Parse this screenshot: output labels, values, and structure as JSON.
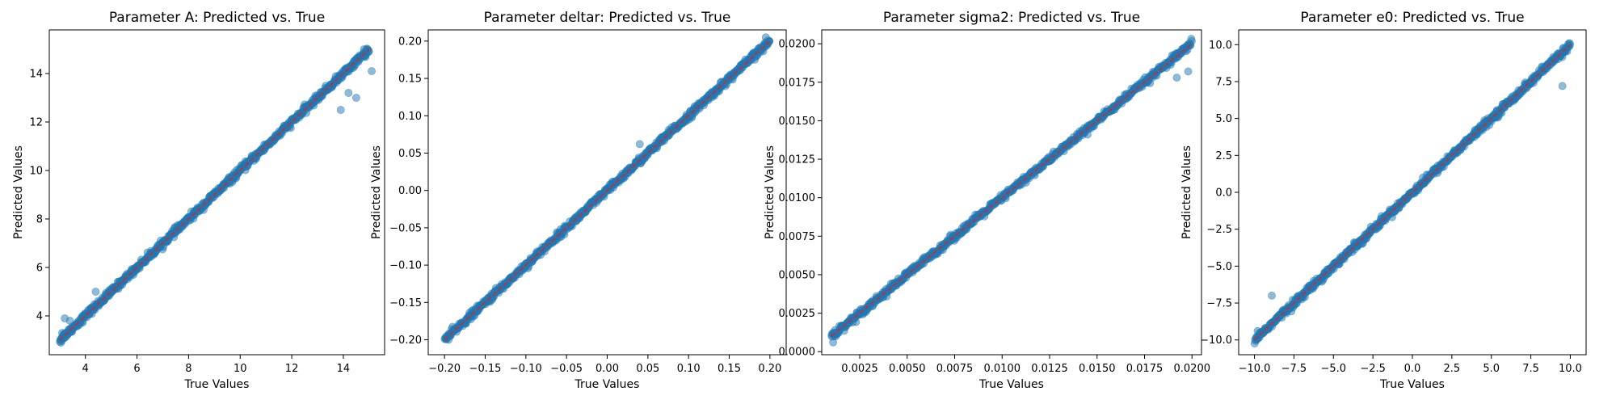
{
  "style": {
    "point_color": "#1f77b4",
    "line_color": "#d62728"
  },
  "chart_data": [
    {
      "type": "scatter",
      "title": "Parameter A: Predicted vs. True",
      "xlabel": "True Values",
      "ylabel": "Predicted Values",
      "xlim": [
        2.6,
        15.6
      ],
      "ylim": [
        2.4,
        15.8
      ],
      "xticks": [
        4,
        6,
        8,
        10,
        12,
        14
      ],
      "xtick_labels": [
        "4",
        "6",
        "8",
        "10",
        "12",
        "14"
      ],
      "yticks": [
        4,
        6,
        8,
        10,
        12,
        14
      ],
      "ytick_labels": [
        "4",
        "6",
        "8",
        "10",
        "12",
        "14"
      ],
      "range": [
        3,
        15
      ],
      "ideal_line": [
        [
          3,
          3
        ],
        [
          15,
          15
        ]
      ],
      "outliers": [
        [
          13.9,
          12.5
        ],
        [
          14.5,
          13.0
        ],
        [
          15.1,
          14.1
        ],
        [
          14.2,
          13.2
        ],
        [
          3.05,
          2.9
        ],
        [
          3.2,
          3.9
        ],
        [
          3.4,
          3.8
        ],
        [
          4.4,
          5.0
        ],
        [
          3.1,
          3.3
        ],
        [
          14.8,
          15.0
        ]
      ],
      "grid": false,
      "legend": "none"
    },
    {
      "type": "scatter",
      "title": "Parameter deltar: Predicted vs. True",
      "xlabel": "True Values",
      "ylabel": "Predicted Values",
      "xlim": [
        -0.22,
        0.22
      ],
      "ylim": [
        -0.22,
        0.215
      ],
      "xticks": [
        -0.2,
        -0.15,
        -0.1,
        -0.05,
        0.0,
        0.05,
        0.1,
        0.15,
        0.2
      ],
      "xtick_labels": [
        "−0.20",
        "−0.15",
        "−0.10",
        "−0.05",
        "0.00",
        "0.05",
        "0.10",
        "0.15",
        "0.20"
      ],
      "yticks": [
        -0.2,
        -0.15,
        -0.1,
        -0.05,
        0.0,
        0.05,
        0.1,
        0.15,
        0.2
      ],
      "ytick_labels": [
        "−0.20",
        "−0.15",
        "−0.10",
        "−0.05",
        "0.00",
        "0.05",
        "0.10",
        "0.15",
        "0.20"
      ],
      "range": [
        -0.2,
        0.2
      ],
      "ideal_line": [
        [
          -0.2,
          -0.2
        ],
        [
          0.2,
          0.2
        ]
      ],
      "outliers": [
        [
          0.04,
          0.062
        ],
        [
          0.195,
          0.205
        ],
        [
          -0.195,
          -0.2
        ]
      ],
      "grid": false,
      "legend": "none"
    },
    {
      "type": "scatter",
      "title": "Parameter sigma2: Predicted vs. True",
      "xlabel": "True Values",
      "ylabel": "Predicted Values",
      "xlim": [
        0.0005,
        0.0205
      ],
      "ylim": [
        -0.0002,
        0.0209
      ],
      "xticks": [
        0.0025,
        0.005,
        0.0075,
        0.01,
        0.0125,
        0.015,
        0.0175,
        0.02
      ],
      "xtick_labels": [
        "0.0025",
        "0.0050",
        "0.0075",
        "0.0100",
        "0.0125",
        "0.0150",
        "0.0175",
        "0.0200"
      ],
      "yticks": [
        0.0,
        0.0025,
        0.005,
        0.0075,
        0.01,
        0.0125,
        0.015,
        0.0175,
        0.02
      ],
      "ytick_labels": [
        "0.0000",
        "0.0025",
        "0.0050",
        "0.0075",
        "0.0100",
        "0.0125",
        "0.0150",
        "0.0175",
        "0.0200"
      ],
      "range": [
        0.001,
        0.02
      ],
      "ideal_line": [
        [
          0.001,
          0.001
        ],
        [
          0.02,
          0.02
        ]
      ],
      "outliers": [
        [
          0.0011,
          0.0006
        ],
        [
          0.0198,
          0.0182
        ],
        [
          0.0192,
          0.0178
        ],
        [
          0.0145,
          0.0141
        ],
        [
          0.0012,
          0.0014
        ]
      ],
      "grid": false,
      "legend": "none"
    },
    {
      "type": "scatter",
      "title": "Parameter e0: Predicted vs. True",
      "xlabel": "True Values",
      "ylabel": "Predicted Values",
      "xlim": [
        -11.0,
        11.0
      ],
      "ylim": [
        -11.0,
        11.0
      ],
      "xticks": [
        -10,
        -7.5,
        -5,
        -2.5,
        0,
        2.5,
        5,
        7.5,
        10
      ],
      "xtick_labels": [
        "−10.0",
        "−7.5",
        "−5.0",
        "−2.5",
        "0.0",
        "2.5",
        "5.0",
        "7.5",
        "10.0"
      ],
      "yticks": [
        -10,
        -7.5,
        -5,
        -2.5,
        0,
        2.5,
        5,
        7.5,
        10
      ],
      "ytick_labels": [
        "−10.0",
        "−7.5",
        "−5.0",
        "−2.5",
        "0.0",
        "2.5",
        "5.0",
        "7.5",
        "10.0"
      ],
      "range": [
        -10,
        10
      ],
      "ideal_line": [
        [
          -10,
          -10
        ],
        [
          10,
          10
        ]
      ],
      "outliers": [
        [
          -8.9,
          -7.0
        ],
        [
          9.5,
          7.2
        ],
        [
          -9.8,
          -9.4
        ],
        [
          -1.5,
          -1.5
        ]
      ],
      "grid": false,
      "legend": "none"
    }
  ]
}
